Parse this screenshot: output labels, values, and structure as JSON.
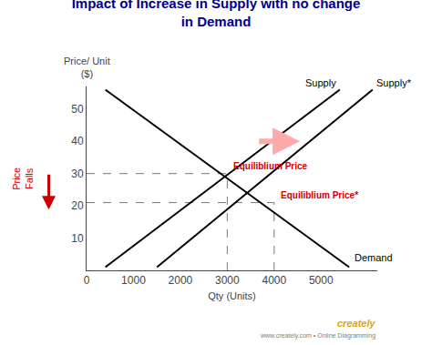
{
  "chart_data": {
    "type": "line",
    "title": "Impact of Increase in Supply with no change\nin Demand",
    "title_color": "#00008B",
    "x_label": "Qty (Units)",
    "y_label": "Price/ Unit\n($)",
    "xlim": [
      0,
      6200
    ],
    "ylim": [
      0,
      57
    ],
    "xticks": [
      0,
      1000,
      2000,
      3000,
      4000,
      5000
    ],
    "yticks": [
      10,
      20,
      30,
      40,
      50
    ],
    "grid": false,
    "series": [
      {
        "name": "Demand",
        "color": "#000000",
        "x": [
          400,
          5600
        ],
        "values": [
          56,
          1
        ]
      },
      {
        "name": "Supply",
        "color": "#000000",
        "x": [
          400,
          5400
        ],
        "values": [
          1,
          56
        ]
      },
      {
        "name": "Supply*",
        "color": "#000000",
        "x": [
          1500,
          6100
        ],
        "values": [
          1,
          56
        ]
      }
    ],
    "equilibria": [
      {
        "x": 3000,
        "y": 30,
        "label": "Equiliblium Price"
      },
      {
        "x": 4000,
        "y": 21,
        "label": "Equiliblium Price*"
      }
    ],
    "equilibrium_label_color": "#cc0000",
    "guide_color": "#777777",
    "guide_line_style": "dash",
    "shift_arrow": {
      "from": [
        3650,
        40
      ],
      "to": [
        4550,
        40
      ],
      "color": "#ffaaaa"
    },
    "side_note": {
      "text": "Price\nFalls",
      "color": "#cc0000"
    },
    "credit": {
      "text": "creately",
      "color": "#e8a000"
    },
    "credit_line": {
      "text": "www.creately.com • Online Diagramming",
      "color": "gray"
    }
  }
}
